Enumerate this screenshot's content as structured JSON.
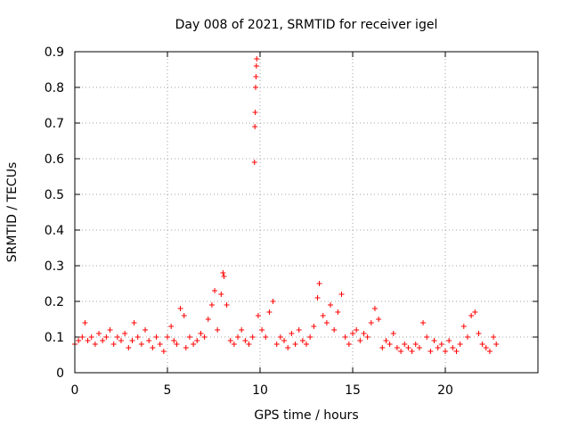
{
  "chart_data": {
    "type": "scatter",
    "title": "Day 008 of 2021, SRMTID for receiver igel",
    "xlabel": "GPS time / hours",
    "ylabel": "SRMTID / TECUs",
    "xlim": [
      0,
      25
    ],
    "ylim": [
      0,
      0.9
    ],
    "x_ticks": [
      0,
      5,
      10,
      15,
      20
    ],
    "y_ticks": [
      0,
      0.1,
      0.2,
      0.3,
      0.4,
      0.5,
      0.6,
      0.7,
      0.8,
      0.9
    ],
    "x_tick_labels": [
      "0",
      "5",
      "10",
      "15",
      "20"
    ],
    "y_tick_labels": [
      "0",
      "0.1",
      "0.2",
      "0.3",
      "0.4",
      "0.5",
      "0.6",
      "0.7",
      "0.8",
      "0.9"
    ],
    "grid": true,
    "marker": "+",
    "color": "#ff0000",
    "series": [
      {
        "name": "SRMTID",
        "x": [
          0.0,
          0.2,
          0.4,
          0.55,
          0.7,
          0.9,
          1.1,
          1.3,
          1.5,
          1.7,
          1.9,
          2.1,
          2.3,
          2.5,
          2.7,
          2.9,
          3.1,
          3.2,
          3.4,
          3.6,
          3.8,
          4.0,
          4.2,
          4.4,
          4.6,
          4.8,
          5.0,
          5.2,
          5.35,
          5.5,
          5.7,
          5.9,
          6.0,
          6.2,
          6.4,
          6.6,
          6.8,
          7.0,
          7.2,
          7.4,
          7.55,
          7.7,
          7.9,
          8.0,
          8.05,
          8.2,
          8.4,
          8.6,
          8.8,
          9.0,
          9.2,
          9.4,
          9.6,
          9.7,
          9.72,
          9.74,
          9.76,
          9.78,
          9.8,
          9.82,
          9.9,
          10.1,
          10.3,
          10.5,
          10.7,
          10.9,
          11.1,
          11.3,
          11.5,
          11.7,
          11.9,
          12.1,
          12.3,
          12.5,
          12.7,
          12.9,
          13.1,
          13.2,
          13.4,
          13.6,
          13.8,
          14.0,
          14.2,
          14.4,
          14.6,
          14.8,
          15.0,
          15.2,
          15.4,
          15.6,
          15.8,
          16.0,
          16.2,
          16.4,
          16.6,
          16.8,
          17.0,
          17.2,
          17.4,
          17.6,
          17.8,
          18.0,
          18.2,
          18.4,
          18.6,
          18.8,
          19.0,
          19.2,
          19.4,
          19.6,
          19.8,
          20.0,
          20.2,
          20.4,
          20.6,
          20.8,
          21.0,
          21.2,
          21.4,
          21.6,
          21.8,
          22.0,
          22.2,
          22.4,
          22.6,
          22.75
        ],
        "y": [
          0.08,
          0.09,
          0.1,
          0.14,
          0.09,
          0.1,
          0.08,
          0.11,
          0.09,
          0.1,
          0.12,
          0.08,
          0.1,
          0.09,
          0.11,
          0.07,
          0.09,
          0.14,
          0.1,
          0.08,
          0.12,
          0.09,
          0.07,
          0.1,
          0.08,
          0.06,
          0.1,
          0.13,
          0.09,
          0.08,
          0.18,
          0.16,
          0.07,
          0.1,
          0.08,
          0.09,
          0.11,
          0.1,
          0.15,
          0.19,
          0.23,
          0.12,
          0.22,
          0.28,
          0.27,
          0.19,
          0.09,
          0.08,
          0.1,
          0.12,
          0.09,
          0.08,
          0.1,
          0.59,
          0.69,
          0.73,
          0.8,
          0.83,
          0.86,
          0.88,
          0.16,
          0.12,
          0.1,
          0.17,
          0.2,
          0.08,
          0.1,
          0.09,
          0.07,
          0.11,
          0.08,
          0.12,
          0.09,
          0.08,
          0.1,
          0.13,
          0.21,
          0.25,
          0.16,
          0.14,
          0.19,
          0.12,
          0.17,
          0.22,
          0.1,
          0.08,
          0.11,
          0.12,
          0.09,
          0.11,
          0.1,
          0.14,
          0.18,
          0.15,
          0.07,
          0.09,
          0.08,
          0.11,
          0.07,
          0.06,
          0.08,
          0.07,
          0.06,
          0.08,
          0.07,
          0.14,
          0.1,
          0.06,
          0.09,
          0.07,
          0.08,
          0.06,
          0.09,
          0.07,
          0.06,
          0.08,
          0.13,
          0.1,
          0.16,
          0.17,
          0.11,
          0.08,
          0.07,
          0.06,
          0.1,
          0.08
        ]
      }
    ]
  }
}
